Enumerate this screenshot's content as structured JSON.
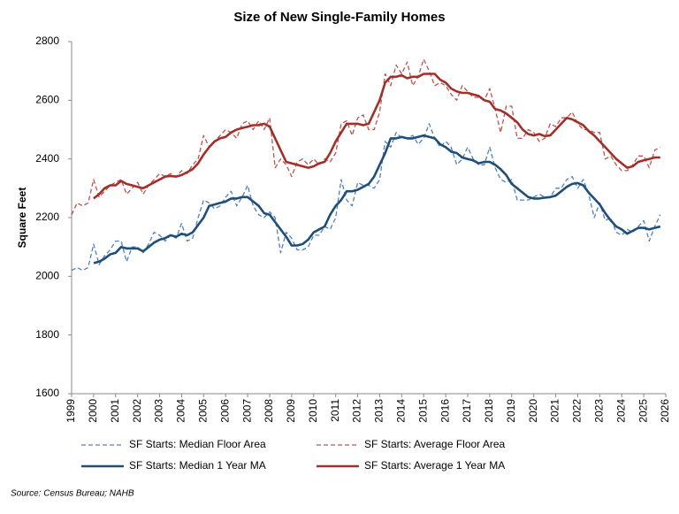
{
  "chart_data": {
    "type": "line",
    "title": "Size of New Single-Family Homes",
    "y_label": "Square Feet",
    "source": "Source: Census Bureau; NAHB",
    "xlim": [
      1999,
      2026
    ],
    "xticks": [
      1999,
      2000,
      2001,
      2002,
      2003,
      2004,
      2005,
      2006,
      2007,
      2008,
      2009,
      2010,
      2011,
      2012,
      2013,
      2014,
      2015,
      2016,
      2017,
      2018,
      2019,
      2020,
      2021,
      2022,
      2023,
      2024,
      2025,
      2026
    ],
    "ylim": [
      1600,
      2800
    ],
    "yticks": [
      1600,
      1800,
      2000,
      2200,
      2400,
      2600,
      2800
    ],
    "grid": false,
    "x": [
      1999,
      1999.25,
      1999.5,
      1999.75,
      2000,
      2000.25,
      2000.5,
      2000.75,
      2001,
      2001.25,
      2001.5,
      2001.75,
      2002,
      2002.25,
      2002.5,
      2002.75,
      2003,
      2003.25,
      2003.5,
      2003.75,
      2004,
      2004.25,
      2004.5,
      2004.75,
      2005,
      2005.25,
      2005.5,
      2005.75,
      2006,
      2006.25,
      2006.5,
      2006.75,
      2007,
      2007.25,
      2007.5,
      2007.75,
      2008,
      2008.25,
      2008.5,
      2008.75,
      2009,
      2009.25,
      2009.5,
      2009.75,
      2010,
      2010.25,
      2010.5,
      2010.75,
      2011,
      2011.25,
      2011.5,
      2011.75,
      2012,
      2012.25,
      2012.5,
      2012.75,
      2013,
      2013.25,
      2013.5,
      2013.75,
      2014,
      2014.25,
      2014.5,
      2014.75,
      2015,
      2015.25,
      2015.5,
      2015.75,
      2016,
      2016.25,
      2016.5,
      2016.75,
      2017,
      2017.25,
      2017.5,
      2017.75,
      2018,
      2018.25,
      2018.5,
      2018.75,
      2019,
      2019.25,
      2019.5,
      2019.75,
      2020,
      2020.25,
      2020.5,
      2020.75,
      2021,
      2021.25,
      2021.5,
      2021.75,
      2022,
      2022.25,
      2022.5,
      2022.75,
      2023,
      2023.25,
      2023.5,
      2023.75,
      2024,
      2024.25,
      2024.5,
      2024.75,
      2025,
      2025.25,
      2025.5,
      2025.75
    ],
    "series": [
      {
        "name": "SF Starts: Median Floor Area",
        "color": "#4f81bd",
        "style": "dashed",
        "width": 1.3,
        "values": [
          2020,
          2030,
          2020,
          2030,
          2110,
          2040,
          2070,
          2090,
          2120,
          2120,
          2050,
          2100,
          2100,
          2080,
          2110,
          2150,
          2140,
          2120,
          2140,
          2130,
          2180,
          2120,
          2130,
          2200,
          2260,
          2250,
          2230,
          2240,
          2270,
          2290,
          2240,
          2270,
          2310,
          2240,
          2210,
          2200,
          2220,
          2200,
          2080,
          2150,
          2130,
          2090,
          2090,
          2100,
          2140,
          2140,
          2170,
          2160,
          2200,
          2330,
          2260,
          2240,
          2320,
          2310,
          2310,
          2300,
          2330,
          2460,
          2440,
          2490,
          2470,
          2470,
          2480,
          2450,
          2470,
          2520,
          2470,
          2440,
          2460,
          2440,
          2380,
          2400,
          2440,
          2400,
          2380,
          2380,
          2440,
          2370,
          2330,
          2320,
          2330,
          2260,
          2260,
          2260,
          2270,
          2280,
          2270,
          2270,
          2300,
          2300,
          2330,
          2340,
          2300,
          2330,
          2280,
          2200,
          2250,
          2190,
          2200,
          2150,
          2140,
          2160,
          2150,
          2170,
          2190,
          2120,
          2170,
          2210
        ]
      },
      {
        "name": "SF Starts: Average Floor Area",
        "color": "#c0504d",
        "style": "dashed",
        "width": 1.3,
        "values": [
          2210,
          2250,
          2240,
          2250,
          2330,
          2270,
          2290,
          2310,
          2320,
          2330,
          2280,
          2300,
          2320,
          2280,
          2310,
          2330,
          2350,
          2340,
          2350,
          2340,
          2360,
          2350,
          2380,
          2400,
          2480,
          2440,
          2460,
          2480,
          2500,
          2490,
          2470,
          2520,
          2530,
          2500,
          2530,
          2500,
          2540,
          2370,
          2400,
          2380,
          2340,
          2390,
          2400,
          2380,
          2400,
          2380,
          2400,
          2390,
          2420,
          2520,
          2530,
          2480,
          2540,
          2550,
          2500,
          2500,
          2560,
          2690,
          2650,
          2720,
          2690,
          2730,
          2650,
          2680,
          2740,
          2700,
          2650,
          2660,
          2650,
          2620,
          2600,
          2650,
          2630,
          2610,
          2610,
          2600,
          2640,
          2570,
          2490,
          2580,
          2580,
          2470,
          2470,
          2500,
          2490,
          2460,
          2470,
          2520,
          2510,
          2540,
          2540,
          2560,
          2520,
          2500,
          2500,
          2490,
          2490,
          2400,
          2410,
          2380,
          2360,
          2360,
          2380,
          2410,
          2410,
          2370,
          2430,
          2440
        ]
      },
      {
        "name": "SF Starts: Median 1 Year MA",
        "color": "#1f4e79",
        "style": "solid",
        "width": 2.6,
        "values": [
          null,
          null,
          null,
          null,
          2045,
          2050,
          2060,
          2075,
          2080,
          2100,
          2095,
          2095,
          2095,
          2085,
          2100,
          2115,
          2125,
          2130,
          2140,
          2135,
          2145,
          2140,
          2150,
          2175,
          2200,
          2240,
          2245,
          2250,
          2255,
          2265,
          2265,
          2270,
          2270,
          2255,
          2240,
          2215,
          2210,
          2185,
          2160,
          2135,
          2105,
          2105,
          2110,
          2125,
          2150,
          2160,
          2170,
          2210,
          2240,
          2260,
          2290,
          2290,
          2295,
          2305,
          2315,
          2340,
          2380,
          2420,
          2470,
          2470,
          2475,
          2470,
          2470,
          2475,
          2480,
          2475,
          2470,
          2450,
          2440,
          2425,
          2420,
          2405,
          2400,
          2395,
          2385,
          2390,
          2390,
          2380,
          2365,
          2345,
          2315,
          2300,
          2285,
          2270,
          2265,
          2265,
          2268,
          2270,
          2275,
          2290,
          2305,
          2315,
          2318,
          2310,
          2285,
          2265,
          2245,
          2215,
          2190,
          2170,
          2160,
          2145,
          2155,
          2165,
          2165,
          2160,
          2165,
          2170
        ]
      },
      {
        "name": "SF Starts: Average 1 Year MA",
        "color": "#a0302a",
        "style": "solid",
        "width": 2.6,
        "values": [
          null,
          null,
          null,
          null,
          2265,
          2280,
          2300,
          2310,
          2310,
          2325,
          2315,
          2310,
          2305,
          2300,
          2310,
          2320,
          2330,
          2340,
          2342,
          2340,
          2345,
          2355,
          2365,
          2385,
          2415,
          2440,
          2460,
          2470,
          2475,
          2490,
          2500,
          2505,
          2510,
          2515,
          2515,
          2520,
          2510,
          2470,
          2430,
          2390,
          2385,
          2380,
          2375,
          2370,
          2375,
          2385,
          2390,
          2420,
          2460,
          2490,
          2520,
          2520,
          2520,
          2515,
          2520,
          2560,
          2600,
          2660,
          2680,
          2680,
          2685,
          2675,
          2680,
          2680,
          2690,
          2690,
          2690,
          2670,
          2660,
          2640,
          2630,
          2625,
          2625,
          2620,
          2615,
          2600,
          2595,
          2570,
          2565,
          2555,
          2540,
          2525,
          2500,
          2485,
          2480,
          2485,
          2478,
          2480,
          2500,
          2520,
          2540,
          2535,
          2525,
          2515,
          2495,
          2480,
          2460,
          2440,
          2420,
          2400,
          2385,
          2370,
          2375,
          2390,
          2395,
          2400,
          2405,
          2405
        ]
      }
    ]
  }
}
